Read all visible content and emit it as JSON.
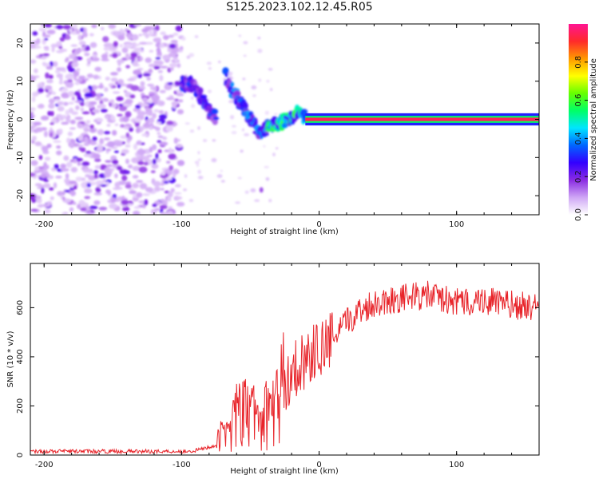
{
  "title": "S125.2023.102.12.45.R05",
  "chart_data": [
    {
      "type": "heatmap",
      "xlabel": "Height of straight line (km)",
      "ylabel": "Frequency (Hz)",
      "xlim": [
        -210,
        160
      ],
      "ylim": [
        -25,
        25
      ],
      "xticks": [
        -200,
        -100,
        0,
        100
      ],
      "yticks": [
        -20,
        -10,
        0,
        10,
        20
      ],
      "colorbar": {
        "label": "Normalized spectral amplitude",
        "range": [
          0,
          1
        ],
        "ticks": [
          "0.0",
          "0.2",
          "0.4",
          "0.6",
          "0.8"
        ],
        "colors": [
          "#ffffff",
          "#cfa6f5",
          "#8a2be2",
          "#3300ff",
          "#0066ff",
          "#00e5ff",
          "#00ff66",
          "#66ff00",
          "#ffff00",
          "#ff9900",
          "#ff2a2a",
          "#ff1493"
        ]
      },
      "features": [
        {
          "name": "noise region",
          "x_range": [
            -210,
            -100
          ],
          "freq_range": [
            -25,
            25
          ],
          "amplitude": 0.1
        },
        {
          "name": "descending echo 1",
          "points": [
            [
              -100,
              9.5
            ],
            [
              -92,
              9
            ],
            [
              -86,
              6
            ],
            [
              -80,
              2
            ],
            [
              -75,
              0.5
            ]
          ],
          "amplitude": 0.25
        },
        {
          "name": "descending echo 2",
          "points": [
            [
              -68,
              11.5
            ],
            [
              -62,
              7
            ],
            [
              -55,
              3
            ],
            [
              -48,
              -1
            ],
            [
              -42,
              -4
            ],
            [
              -38,
              -2
            ]
          ],
          "amplitude": 0.3
        },
        {
          "name": "converging trace",
          "points": [
            [
              -38,
              -2
            ],
            [
              -30,
              -1
            ],
            [
              -22,
              0
            ],
            [
              -16,
              1.5
            ],
            [
              -10,
              0.5
            ]
          ],
          "amplitude": 0.45
        },
        {
          "name": "steady carrier",
          "points": [
            [
              -10,
              0.3
            ],
            [
              160,
              0.3
            ]
          ],
          "amplitude": 0.95
        }
      ]
    },
    {
      "type": "line",
      "xlabel": "Height of straight line (km)",
      "ylabel": "SNR (10 * v/v)",
      "xlim": [
        -210,
        160
      ],
      "ylim": [
        0,
        780
      ],
      "xticks": [
        -200,
        -100,
        0,
        100
      ],
      "yticks": [
        0,
        200,
        400,
        600
      ],
      "color": "#e8242a",
      "series": [
        {
          "name": "SNR",
          "x": [
            -210,
            -100,
            -90,
            -75,
            -68,
            -60,
            -50,
            -40,
            -30,
            -20,
            -10,
            0,
            10,
            20,
            30,
            40,
            60,
            80,
            100,
            120,
            140,
            160
          ],
          "values": [
            15,
            15,
            18,
            40,
            110,
            160,
            170,
            150,
            220,
            340,
            390,
            430,
            470,
            540,
            590,
            620,
            640,
            650,
            620,
            630,
            610,
            600
          ]
        }
      ]
    }
  ]
}
